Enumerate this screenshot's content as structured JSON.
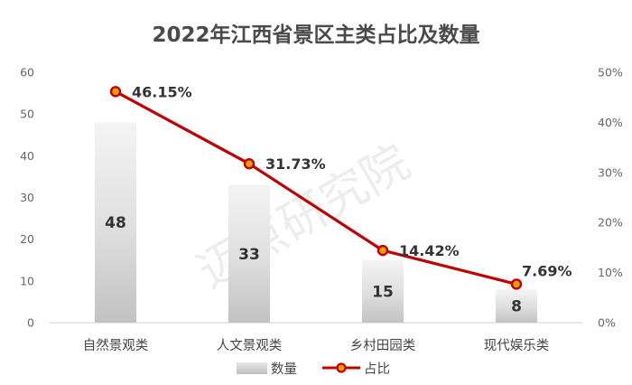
{
  "chart_data": {
    "type": "bar+line",
    "title": "2022年江西省景区主类占比及数量",
    "categories": [
      "自然景观类",
      "人文景观类",
      "乡村田园类",
      "现代娱乐类"
    ],
    "series": [
      {
        "name": "数量",
        "type": "bar",
        "axis": "left",
        "values": [
          48,
          33,
          15,
          8
        ],
        "labels": [
          "48",
          "33",
          "15",
          "8"
        ]
      },
      {
        "name": "占比",
        "type": "line",
        "axis": "right",
        "values": [
          46.15,
          31.73,
          14.42,
          7.69
        ],
        "labels": [
          "46.15%",
          "31.73%",
          "14.42%",
          "7.69%"
        ]
      }
    ],
    "y_left": {
      "min": 0,
      "max": 60,
      "ticks": [
        "0",
        "10",
        "20",
        "30",
        "40",
        "50",
        "60"
      ]
    },
    "y_right": {
      "min": 0,
      "max": 50,
      "ticks": [
        "0%",
        "10%",
        "20%",
        "30%",
        "40%",
        "50%"
      ]
    },
    "legend_placement": "bottom",
    "grid": false,
    "watermark": "迈点研究院",
    "colors": {
      "line": "#c00000",
      "marker_fill": "#e8a000",
      "bar_light": "#f4f4f4",
      "bar_dark": "#bdbdbd"
    }
  }
}
